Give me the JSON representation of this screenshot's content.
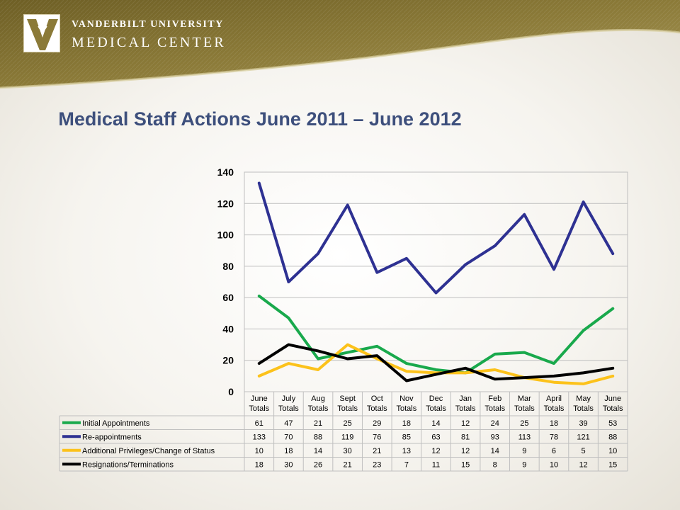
{
  "header": {
    "logo_line1": "VANDERBILT UNIVERSITY",
    "logo_line2": "MEDICAL CENTER"
  },
  "slide_title": "Medical Staff Actions June 2011 – June 2012",
  "colors": {
    "header_gold": "#7a6a2c",
    "title_blue": "#3d4f7c"
  },
  "chart_data": {
    "type": "line",
    "title": "",
    "xlabel": "",
    "ylabel": "",
    "ylim": [
      0,
      140
    ],
    "yticks": [
      0,
      20,
      40,
      60,
      80,
      100,
      120,
      140
    ],
    "grid": true,
    "legend": "data table below chart",
    "categories": [
      [
        "June",
        "Totals"
      ],
      [
        "July",
        "Totals"
      ],
      [
        "Aug",
        "Totals"
      ],
      [
        "Sept",
        "Totals"
      ],
      [
        "Oct",
        "Totals"
      ],
      [
        "Nov",
        "Totals"
      ],
      [
        "Dec",
        "Totals"
      ],
      [
        "Jan",
        "Totals"
      ],
      [
        "Feb",
        "Totals"
      ],
      [
        "Mar",
        "Totals"
      ],
      [
        "April",
        "Totals"
      ],
      [
        "May",
        "Totals"
      ],
      [
        "June",
        "Totals"
      ]
    ],
    "series": [
      {
        "name": "Initial Appointments",
        "color": "#19a94c",
        "values": [
          61,
          47,
          21,
          25,
          29,
          18,
          14,
          12,
          24,
          25,
          18,
          39,
          53
        ]
      },
      {
        "name": "Re-appointments",
        "color": "#2e3192",
        "values": [
          133,
          70,
          88,
          119,
          76,
          85,
          63,
          81,
          93,
          113,
          78,
          121,
          88
        ]
      },
      {
        "name": "Additional Privileges/Change of Status",
        "color": "#fcc21b",
        "values": [
          10,
          18,
          14,
          30,
          21,
          13,
          12,
          12,
          14,
          9,
          6,
          5,
          10
        ]
      },
      {
        "name": "Resignations/Terminations",
        "color": "#000000",
        "values": [
          18,
          30,
          26,
          21,
          23,
          7,
          11,
          15,
          8,
          9,
          10,
          12,
          15
        ]
      }
    ]
  }
}
